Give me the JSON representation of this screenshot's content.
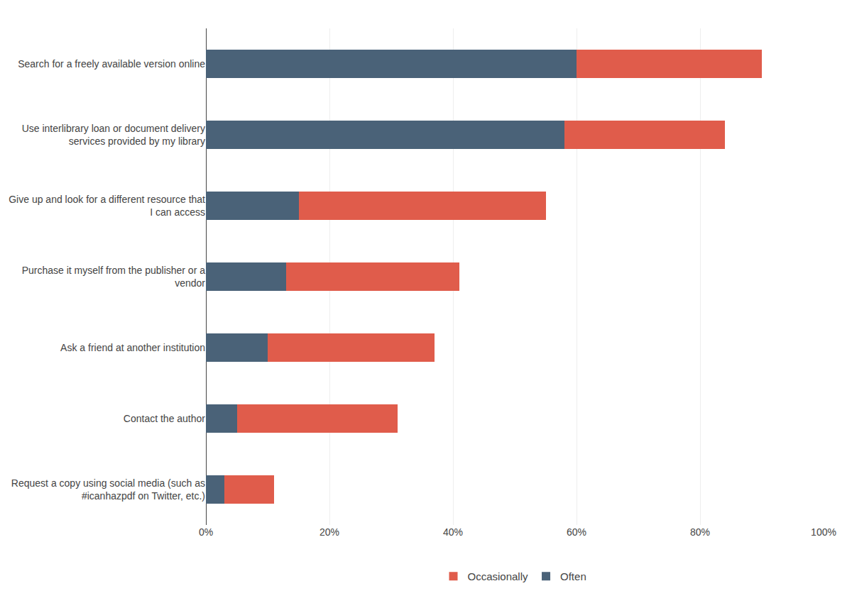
{
  "chart_data": {
    "type": "bar",
    "orientation": "horizontal",
    "stacked": true,
    "categories": [
      "Search for a freely available version online",
      "Use interlibrary loan or document delivery\nservices provided by my library",
      "Give up and look for a different resource that\nI can access",
      "Purchase it myself from the publisher or a\nvendor",
      "Ask a friend at another institution",
      "Contact the author",
      "Request a copy using social media (such as\n#icanhazpdf on Twitter, etc.)"
    ],
    "series": [
      {
        "name": "Often",
        "color": "#4a6278",
        "values": [
          60,
          58,
          15,
          13,
          10,
          5,
          3
        ]
      },
      {
        "name": "Occasionally",
        "color": "#e05c4b",
        "values": [
          30,
          26,
          40,
          28,
          27,
          26,
          8
        ]
      }
    ],
    "xlim": [
      0,
      100
    ],
    "xticks": [
      {
        "value": 0,
        "label": "0%"
      },
      {
        "value": 20,
        "label": "20%"
      },
      {
        "value": 40,
        "label": "40%"
      },
      {
        "value": 60,
        "label": "60%"
      },
      {
        "value": 80,
        "label": "80%"
      },
      {
        "value": 100,
        "label": "100%"
      }
    ],
    "grid": true,
    "legend": "bottom"
  }
}
